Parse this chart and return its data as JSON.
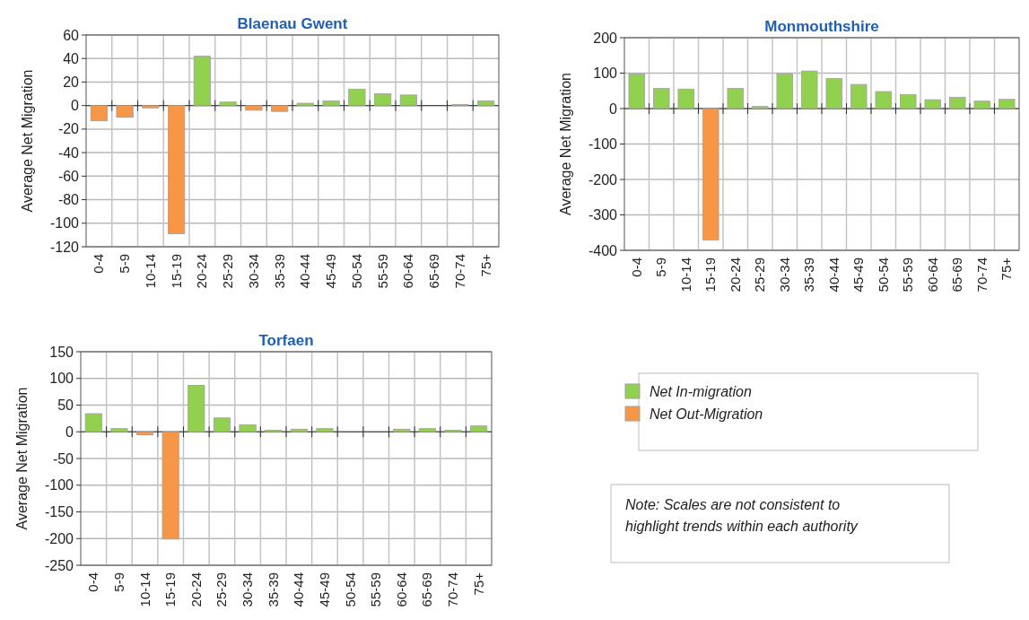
{
  "chart_data": [
    {
      "type": "bar",
      "title": "Blaenau Gwent",
      "ylabel": "Average Net Migration",
      "categories": [
        "0-4",
        "5-9",
        "10-14",
        "15-19",
        "20-24",
        "25-29",
        "30-34",
        "35-39",
        "40-44",
        "45-49",
        "50-54",
        "55-59",
        "60-64",
        "65-69",
        "70-74",
        "75+"
      ],
      "series": [
        {
          "color": "#92d050",
          "values": [
            null,
            null,
            null,
            null,
            42,
            3,
            null,
            null,
            2,
            4,
            14,
            10,
            9,
            null,
            1,
            4
          ]
        },
        {
          "color": "#f79646",
          "values": [
            -13,
            -10,
            -2,
            -109,
            null,
            null,
            -4,
            -5,
            null,
            null,
            null,
            null,
            null,
            null,
            null,
            null
          ]
        }
      ],
      "ylim": [
        -120,
        60
      ],
      "yticks": [
        -120,
        -100,
        -80,
        -60,
        -40,
        -20,
        0,
        20,
        40,
        60
      ],
      "grid": true,
      "legend": false
    },
    {
      "type": "bar",
      "title": "Monmouthshire",
      "ylabel": "Average Net Migration",
      "categories": [
        "0-4",
        "5-9",
        "10-14",
        "15-19",
        "20-24",
        "25-29",
        "30-34",
        "35-39",
        "40-44",
        "45-49",
        "50-54",
        "55-59",
        "60-64",
        "65-69",
        "70-74",
        "75+"
      ],
      "series": [
        {
          "color": "#92d050",
          "values": [
            98,
            57,
            55,
            null,
            57,
            6,
            98,
            106,
            85,
            68,
            48,
            39,
            25,
            32,
            21,
            26
          ]
        },
        {
          "color": "#f79646",
          "values": [
            null,
            null,
            null,
            -371,
            null,
            null,
            null,
            null,
            null,
            null,
            null,
            null,
            null,
            null,
            null,
            null
          ]
        }
      ],
      "ylim": [
        -400,
        200
      ],
      "yticks": [
        -400,
        -300,
        -200,
        -100,
        0,
        100,
        200
      ],
      "grid": true,
      "legend": false
    },
    {
      "type": "bar",
      "title": "Torfaen",
      "ylabel": "Average Net Migration",
      "categories": [
        "0-4",
        "5-9",
        "10-14",
        "15-19",
        "20-24",
        "25-29",
        "30-34",
        "35-39",
        "40-44",
        "45-49",
        "50-54",
        "55-59",
        "60-64",
        "65-69",
        "70-74",
        "75+"
      ],
      "series": [
        {
          "name": "Net In-migration",
          "color": "#92d050",
          "values": [
            34,
            6,
            null,
            null,
            87,
            26,
            13,
            3,
            5,
            6,
            null,
            null,
            5,
            6,
            3,
            11
          ]
        },
        {
          "name": "Net Out-Migration",
          "color": "#f79646",
          "values": [
            null,
            null,
            -6,
            -201,
            null,
            null,
            null,
            null,
            null,
            null,
            null,
            null,
            null,
            null,
            null,
            null
          ]
        }
      ],
      "ylim": [
        -250,
        150
      ],
      "yticks": [
        -250,
        -200,
        -150,
        -100,
        -50,
        0,
        50,
        100,
        150
      ],
      "grid": true,
      "legend": "right",
      "annotations": [
        "Note: Scales are not consistent to highlight trends within each authority"
      ]
    }
  ]
}
